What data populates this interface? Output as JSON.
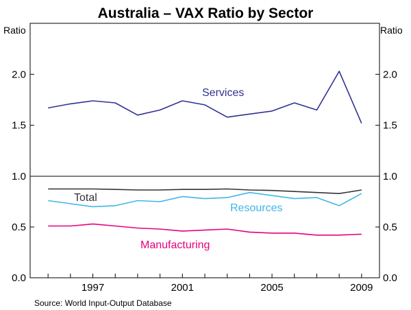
{
  "chart_data": {
    "type": "line",
    "title": "Australia – VAX Ratio by Sector",
    "source": "Source: World Input-Output Database",
    "left_unit": "Ratio",
    "right_unit": "Ratio",
    "x": [
      1995,
      1996,
      1997,
      1998,
      1999,
      2000,
      2001,
      2002,
      2003,
      2004,
      2005,
      2006,
      2007,
      2008,
      2009
    ],
    "x_ticks": [
      "1997",
      "2001",
      "2005",
      "2009"
    ],
    "xlim": [
      1994.2,
      2009.8
    ],
    "panels": [
      {
        "name": "top",
        "ylim": [
          1.0,
          2.5
        ],
        "y_ticks": [
          "1.5",
          "2.0"
        ],
        "series": [
          {
            "name": "Services",
            "color": "#2e3192",
            "values": [
              1.67,
              1.71,
              1.74,
              1.72,
              1.6,
              1.65,
              1.74,
              1.7,
              1.58,
              1.61,
              1.64,
              1.72,
              1.65,
              2.03,
              1.52
            ]
          }
        ]
      },
      {
        "name": "bottom",
        "ylim": [
          0.0,
          1.0
        ],
        "y_ticks": [
          "0.0",
          "0.5",
          "1.0"
        ],
        "series": [
          {
            "name": "Total",
            "color": "#333333",
            "values": [
              0.875,
              0.875,
              0.875,
              0.87,
              0.865,
              0.865,
              0.87,
              0.87,
              0.875,
              0.865,
              0.86,
              0.85,
              0.84,
              0.83,
              0.865
            ]
          },
          {
            "name": "Resources",
            "color": "#3fb6e6",
            "values": [
              0.76,
              0.73,
              0.7,
              0.71,
              0.76,
              0.75,
              0.8,
              0.78,
              0.79,
              0.84,
              0.81,
              0.78,
              0.79,
              0.71,
              0.83
            ]
          },
          {
            "name": "Manufacturing",
            "color": "#e6007e",
            "values": [
              0.51,
              0.51,
              0.53,
              0.51,
              0.49,
              0.48,
              0.46,
              0.47,
              0.48,
              0.45,
              0.44,
              0.44,
              0.42,
              0.42,
              0.43
            ]
          }
        ]
      }
    ]
  }
}
